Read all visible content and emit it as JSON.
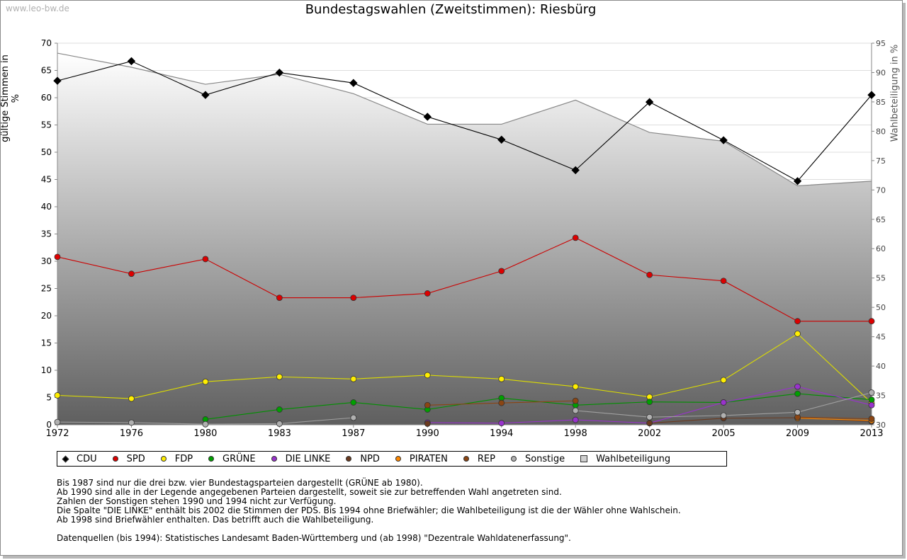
{
  "watermark": "www.leo-bw.de",
  "title": "Bundestagswahlen (Zweitstimmen): Riesbürg",
  "ylabel_left": "gültige Stimmen in %",
  "ylabel_right": "Wahlbeteiligung in %",
  "legend": [
    {
      "name": "CDU",
      "color": "#000000"
    },
    {
      "name": "SPD",
      "color": "#dd0000"
    },
    {
      "name": "FDP",
      "color": "#ffee00"
    },
    {
      "name": "GRÜNE",
      "color": "#00a000"
    },
    {
      "name": "DIE LINKE",
      "color": "#9933cc"
    },
    {
      "name": "NPD",
      "color": "#6b3a1f"
    },
    {
      "name": "PIRATEN",
      "color": "#ff8800"
    },
    {
      "name": "REP",
      "color": "#8b4513"
    },
    {
      "name": "Sonstige",
      "color": "#b0b0b0"
    },
    {
      "name": "Wahlbeteiligung",
      "color": "#cfcfcf"
    }
  ],
  "notes": [
    "Bis 1987 sind nur die drei bzw. vier Bundestagsparteien dargestellt (GRÜNE ab 1980).",
    "Ab 1990 sind alle in der Legende angegebenen Parteien dargestellt, soweit sie zur betreffenden Wahl angetreten sind.",
    "Zahlen der Sonstigen stehen 1990 und 1994 nicht zur Verfügung.",
    "Die Spalte \"DIE LINKE\" enthält bis 2002 die Stimmen der PDS. Bis 1994 ohne Briefwähler; die Wahlbeteiligung ist die der Wähler ohne Wahlschein.",
    "Ab 1998 sind Briefwähler enthalten. Das betrifft auch die Wahlbeteiligung.",
    "",
    "Datenquellen (bis 1994): Statistisches Landesamt Baden-Württemberg und (ab 1998) \"Dezentrale Wahldatenerfassung\"."
  ],
  "chart_data": {
    "type": "line",
    "categories": [
      "1972",
      "1976",
      "1980",
      "1983",
      "1987",
      "1990",
      "1994",
      "1998",
      "2002",
      "2005",
      "2009",
      "2013"
    ],
    "ylim": [
      0,
      70
    ],
    "yticks": [
      0,
      5,
      10,
      15,
      20,
      25,
      30,
      35,
      40,
      45,
      50,
      55,
      60,
      65,
      70
    ],
    "y2lim": [
      30,
      95
    ],
    "y2ticks": [
      30,
      35,
      40,
      45,
      50,
      55,
      60,
      65,
      70,
      75,
      80,
      85,
      90,
      95
    ],
    "grid": true,
    "legend_position": "bottom",
    "turnout": {
      "name": "Wahlbeteiligung",
      "color": "#888888",
      "values": [
        93.3,
        90.9,
        88.0,
        89.7,
        86.4,
        81.2,
        81.2,
        85.3,
        79.8,
        78.3,
        70.7,
        71.5
      ]
    },
    "series": [
      {
        "name": "CDU",
        "color": "#000000",
        "line": "#000000",
        "values": [
          63.1,
          66.7,
          60.5,
          64.6,
          62.7,
          56.5,
          52.3,
          46.7,
          59.2,
          52.2,
          44.7,
          60.5
        ]
      },
      {
        "name": "SPD",
        "color": "#dd0000",
        "line": "#cc0000",
        "values": [
          30.8,
          27.7,
          30.4,
          23.3,
          23.3,
          24.1,
          28.2,
          34.3,
          27.5,
          26.4,
          19.0,
          19.0
        ]
      },
      {
        "name": "FDP",
        "color": "#ffee00",
        "line": "#dddd00",
        "values": [
          5.4,
          4.8,
          7.9,
          8.8,
          8.4,
          9.1,
          8.4,
          7.0,
          5.1,
          8.2,
          16.7,
          4.0
        ]
      },
      {
        "name": "GRÜNE",
        "color": "#00a000",
        "line": "#009000",
        "values": [
          null,
          null,
          1.0,
          2.8,
          4.1,
          2.8,
          4.9,
          3.6,
          4.2,
          4.1,
          5.7,
          4.6
        ]
      },
      {
        "name": "DIE LINKE",
        "color": "#9933cc",
        "line": "#9933cc",
        "values": [
          null,
          null,
          null,
          null,
          null,
          0.4,
          0.3,
          0.9,
          0.3,
          4.1,
          7.0,
          3.6
        ]
      },
      {
        "name": "NPD",
        "color": "#6b3a1f",
        "line": "#6b3a1f",
        "values": [
          null,
          null,
          null,
          null,
          null,
          0.2,
          null,
          null,
          0.3,
          1.2,
          1.3,
          0.6
        ]
      },
      {
        "name": "PIRATEN",
        "color": "#ff8800",
        "line": "#ff8800",
        "values": [
          null,
          null,
          null,
          null,
          null,
          null,
          null,
          null,
          null,
          null,
          1.2,
          0.8
        ]
      },
      {
        "name": "REP",
        "color": "#8b4513",
        "line": "#8b4513",
        "values": [
          null,
          null,
          null,
          null,
          null,
          3.6,
          4.0,
          4.4,
          null,
          null,
          1.4,
          1.1
        ]
      },
      {
        "name": "Sonstige",
        "color": "#b0b0b0",
        "line": "#a0a0a0",
        "values": [
          0.5,
          0.4,
          0.1,
          0.2,
          1.3,
          null,
          null,
          2.6,
          1.4,
          1.7,
          2.3,
          5.9
        ]
      }
    ]
  }
}
